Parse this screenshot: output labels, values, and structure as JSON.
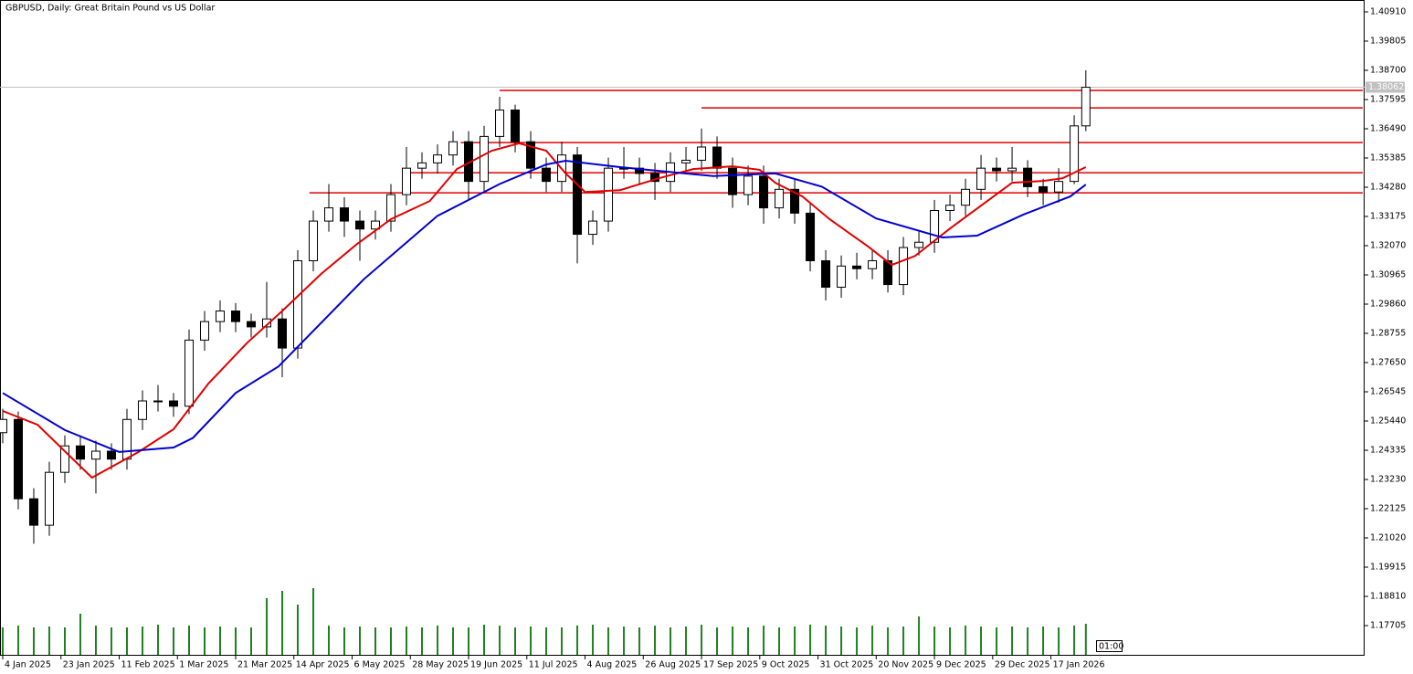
{
  "chart_data": {
    "type": "candlestick",
    "title": "GBPUSD, Daily:  Great Britain Pound vs US Dollar",
    "xlim": [
      -0.7,
      350.8
    ],
    "ylim": [
      1.16566,
      1.41359
    ],
    "xticks": [
      {
        "value": 0,
        "label": "4 Jan 2025"
      },
      {
        "value": 15,
        "label": "23 Jan 2025"
      },
      {
        "value": 30,
        "label": "11 Feb 2025"
      },
      {
        "value": 45,
        "label": "1 Mar 2025"
      },
      {
        "value": 60,
        "label": "21 Mar 2025"
      },
      {
        "value": 75,
        "label": "14 Apr 2025"
      },
      {
        "value": 90,
        "label": "6 May 2025"
      },
      {
        "value": 105,
        "label": "28 May 2025"
      },
      {
        "value": 120,
        "label": "19 Jun 2025"
      },
      {
        "value": 135,
        "label": "11 Jul 2025"
      },
      {
        "value": 150,
        "label": "4 Aug 2025"
      },
      {
        "value": 165,
        "label": "26 Aug 2025"
      },
      {
        "value": 180,
        "label": "17 Sep 2025"
      },
      {
        "value": 195,
        "label": "9 Oct 2025"
      },
      {
        "value": 210,
        "label": "31 Oct 2025"
      },
      {
        "value": 225,
        "label": "20 Nov 2025"
      },
      {
        "value": 240,
        "label": "9 Dec 2025"
      },
      {
        "value": 255,
        "label": "29 Dec 2025"
      },
      {
        "value": 270,
        "label": "17 Jan 2026"
      }
    ],
    "yticks": [
      {
        "value": 1.4091,
        "label": "1.40910"
      },
      1.39805,
      {
        "value": 1.387,
        "label": "1.38700"
      },
      1.37595,
      {
        "value": 1.3649,
        "label": "1.36490"
      },
      1.35385,
      {
        "value": 1.3428,
        "label": "1.34280"
      },
      1.33175,
      {
        "value": 1.3207,
        "label": "1.32070"
      },
      1.30965,
      {
        "value": 1.2986,
        "label": "1.29860"
      },
      1.28755,
      {
        "value": 1.2765,
        "label": "1.27650"
      },
      1.26545,
      {
        "value": 1.2544,
        "label": "1.25440"
      },
      1.24335,
      {
        "value": 1.2323,
        "label": "1.23230"
      },
      1.22125,
      {
        "value": 1.2102,
        "label": "1.21020"
      },
      1.19915,
      {
        "value": 1.1881,
        "label": "1.18810"
      },
      1.17705
    ],
    "x": [
      0,
      4,
      8,
      12,
      16,
      20,
      24,
      28,
      32,
      36,
      40,
      44,
      48,
      52,
      56,
      60,
      64,
      68,
      72,
      76,
      80,
      84,
      88,
      92,
      96,
      100,
      104,
      108,
      112,
      116,
      120,
      124,
      128,
      132,
      136,
      140,
      144,
      148,
      152,
      156,
      160,
      164,
      168,
      172,
      176,
      180,
      184,
      188,
      192,
      196,
      200,
      204,
      208,
      212,
      216,
      220,
      224,
      228,
      232,
      236,
      240,
      244,
      248,
      252,
      256,
      260,
      264,
      268,
      272,
      276,
      279
    ],
    "ohlc": [
      [
        1.25,
        1.259,
        1.246,
        1.255
      ],
      [
        1.255,
        1.258,
        1.221,
        1.225
      ],
      [
        1.225,
        1.229,
        1.208,
        1.215
      ],
      [
        1.215,
        1.239,
        1.211,
        1.235
      ],
      [
        1.235,
        1.249,
        1.231,
        1.245
      ],
      [
        1.245,
        1.249,
        1.236,
        1.24
      ],
      [
        1.24,
        1.247,
        1.227,
        1.243
      ],
      [
        1.243,
        1.246,
        1.236,
        1.24
      ],
      [
        1.24,
        1.259,
        1.236,
        1.255
      ],
      [
        1.255,
        1.266,
        1.251,
        1.262
      ],
      [
        1.262,
        1.268,
        1.258,
        1.262
      ],
      [
        1.262,
        1.265,
        1.256,
        1.26
      ],
      [
        1.26,
        1.289,
        1.257,
        1.285
      ],
      [
        1.285,
        1.296,
        1.281,
        1.292
      ],
      [
        1.292,
        1.3,
        1.288,
        1.296
      ],
      [
        1.296,
        1.299,
        1.288,
        1.292
      ],
      [
        1.292,
        1.295,
        1.286,
        1.29
      ],
      [
        1.29,
        1.307,
        1.286,
        1.293
      ],
      [
        1.293,
        1.297,
        1.271,
        1.282
      ],
      [
        1.282,
        1.319,
        1.278,
        1.315
      ],
      [
        1.315,
        1.334,
        1.311,
        1.33
      ],
      [
        1.33,
        1.344,
        1.326,
        1.335
      ],
      [
        1.335,
        1.339,
        1.324,
        1.33
      ],
      [
        1.33,
        1.334,
        1.315,
        1.327
      ],
      [
        1.327,
        1.334,
        1.323,
        1.33
      ],
      [
        1.33,
        1.344,
        1.326,
        1.34
      ],
      [
        1.34,
        1.358,
        1.336,
        1.35
      ],
      [
        1.35,
        1.356,
        1.346,
        1.352
      ],
      [
        1.352,
        1.359,
        1.348,
        1.355
      ],
      [
        1.355,
        1.364,
        1.351,
        1.36
      ],
      [
        1.36,
        1.364,
        1.338,
        1.345
      ],
      [
        1.345,
        1.366,
        1.341,
        1.362
      ],
      [
        1.362,
        1.377,
        1.358,
        1.372
      ],
      [
        1.372,
        1.374,
        1.356,
        1.36
      ],
      [
        1.36,
        1.364,
        1.346,
        1.35
      ],
      [
        1.35,
        1.354,
        1.341,
        1.345
      ],
      [
        1.345,
        1.36,
        1.341,
        1.355
      ],
      [
        1.355,
        1.358,
        1.314,
        1.325
      ],
      [
        1.325,
        1.334,
        1.321,
        1.33
      ],
      [
        1.33,
        1.354,
        1.326,
        1.35
      ],
      [
        1.35,
        1.358,
        1.346,
        1.35
      ],
      [
        1.35,
        1.354,
        1.344,
        1.348
      ],
      [
        1.348,
        1.352,
        1.338,
        1.345
      ],
      [
        1.345,
        1.356,
        1.341,
        1.352
      ],
      [
        1.352,
        1.358,
        1.349,
        1.353
      ],
      [
        1.353,
        1.365,
        1.349,
        1.358
      ],
      [
        1.358,
        1.362,
        1.346,
        1.35
      ],
      [
        1.35,
        1.354,
        1.335,
        1.34
      ],
      [
        1.34,
        1.351,
        1.336,
        1.347
      ],
      [
        1.347,
        1.351,
        1.329,
        1.335
      ],
      [
        1.335,
        1.346,
        1.331,
        1.342
      ],
      [
        1.342,
        1.346,
        1.329,
        1.333
      ],
      [
        1.333,
        1.337,
        1.311,
        1.315
      ],
      [
        1.315,
        1.319,
        1.3,
        1.305
      ],
      [
        1.305,
        1.317,
        1.301,
        1.313
      ],
      [
        1.313,
        1.318,
        1.308,
        1.312
      ],
      [
        1.312,
        1.319,
        1.308,
        1.315
      ],
      [
        1.315,
        1.319,
        1.303,
        1.306
      ],
      [
        1.306,
        1.324,
        1.302,
        1.32
      ],
      [
        1.32,
        1.326,
        1.317,
        1.322
      ],
      [
        1.322,
        1.338,
        1.318,
        1.334
      ],
      [
        1.334,
        1.34,
        1.33,
        1.336
      ],
      [
        1.336,
        1.346,
        1.332,
        1.342
      ],
      [
        1.342,
        1.355,
        1.338,
        1.35
      ],
      [
        1.35,
        1.354,
        1.345,
        1.349
      ],
      [
        1.349,
        1.358,
        1.345,
        1.35
      ],
      [
        1.35,
        1.353,
        1.339,
        1.343
      ],
      [
        1.343,
        1.346,
        1.336,
        1.341
      ],
      [
        1.341,
        1.35,
        1.337,
        1.345
      ],
      [
        1.345,
        1.37,
        1.344,
        1.366
      ],
      [
        1.366,
        1.387,
        1.364,
        1.3806
      ]
    ],
    "volume": [
      30,
      32,
      30,
      31,
      30,
      45,
      32,
      30,
      30,
      31,
      33,
      30,
      32,
      30,
      31,
      30,
      30,
      62,
      70,
      55,
      73,
      32,
      30,
      31,
      30,
      30,
      31,
      30,
      32,
      30,
      30,
      33,
      32,
      30,
      31,
      30,
      30,
      32,
      33,
      30,
      31,
      30,
      32,
      30,
      31,
      33,
      30,
      31,
      30,
      32,
      30,
      31,
      33,
      32,
      31,
      30,
      32,
      30,
      31,
      42,
      31,
      30,
      32,
      31,
      30,
      31,
      30,
      31,
      30,
      32,
      34
    ],
    "moving_averages": [
      {
        "color": "#e00000",
        "x": [
          0,
          9,
          23,
          35,
          44,
          53,
          63,
          72,
          82,
          91,
          100,
          110,
          117,
          126,
          133,
          140,
          145,
          150,
          159,
          169,
          178,
          188,
          195,
          199,
          206,
          213,
          223,
          229,
          235,
          244,
          253,
          260,
          268,
          273,
          279
        ],
        "values": [
          1.2582,
          1.253,
          1.233,
          1.2427,
          1.2513,
          1.2686,
          1.284,
          1.296,
          1.31,
          1.321,
          1.3307,
          1.3376,
          1.3497,
          1.3566,
          1.3594,
          1.3566,
          1.348,
          1.341,
          1.3417,
          1.3462,
          1.3497,
          1.3507,
          1.3494,
          1.3445,
          1.3393,
          1.3307,
          1.3203,
          1.3134,
          1.3168,
          1.3272,
          1.3369,
          1.3445,
          1.3452,
          1.3462,
          1.3504
        ]
      },
      {
        "color": "#0000d0",
        "x": [
          0,
          16,
          30,
          44,
          49,
          60,
          71,
          93,
          112,
          128,
          140,
          145,
          159,
          183,
          199,
          211,
          225,
          242,
          251,
          263,
          275,
          279
        ],
        "values": [
          1.265,
          1.251,
          1.2427,
          1.2444,
          1.248,
          1.265,
          1.275,
          1.308,
          1.332,
          1.344,
          1.3514,
          1.3528,
          1.3504,
          1.347,
          1.348,
          1.343,
          1.331,
          1.3238,
          1.3245,
          1.3325,
          1.3393,
          1.3438
        ]
      }
    ],
    "levels": [
      {
        "value": 1.3794,
        "x_start": 128
      },
      {
        "value": 1.3728,
        "x_start": 180
      },
      {
        "value": 1.3597,
        "x_start": 118
      },
      {
        "value": 1.3483,
        "x_start": 103
      },
      {
        "value": 1.3407,
        "x_start": 79
      }
    ],
    "level_color": "#e00000",
    "last_price": 1.38062,
    "time_marker": "01:00"
  }
}
